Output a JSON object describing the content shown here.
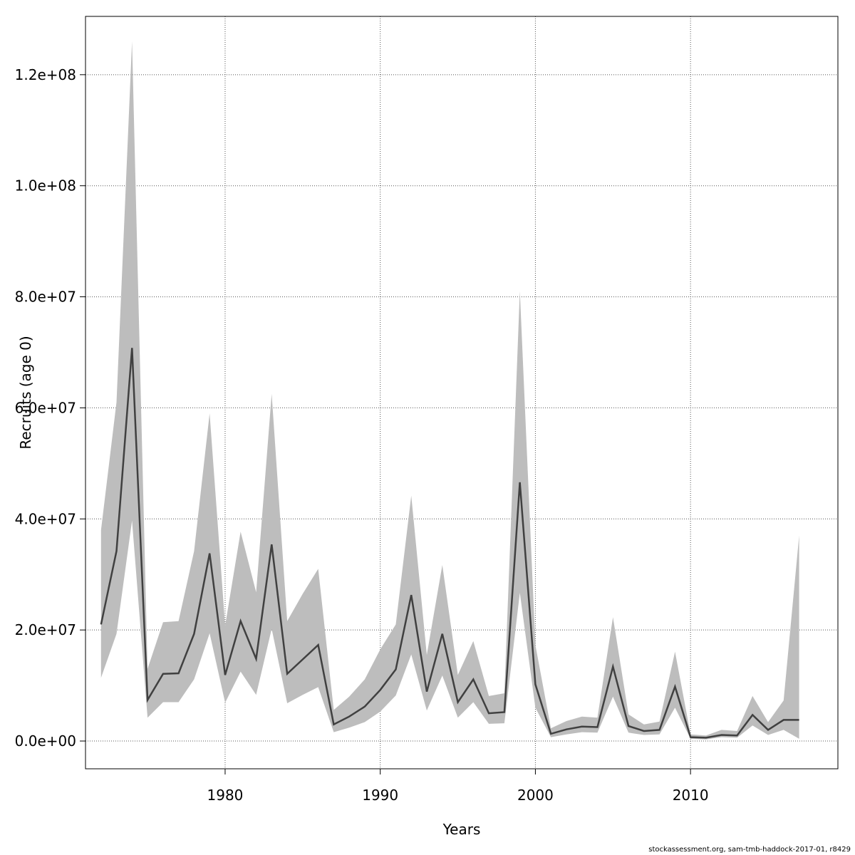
{
  "chart_data": {
    "type": "area",
    "xlabel": "Years",
    "ylabel": "Recruits (age 0)",
    "xlim": [
      1971,
      2019.5
    ],
    "ylim": [
      -5000000,
      130500000
    ],
    "x_ticks": [
      1980,
      1990,
      2000,
      2010
    ],
    "y_ticks": [
      0,
      20000000,
      40000000,
      60000000,
      80000000,
      100000000,
      120000000
    ],
    "y_tick_labels": [
      "0.0e+00",
      "2.0e+07",
      "4.0e+07",
      "6.0e+07",
      "8.0e+07",
      "1.0e+08",
      "1.2e+08"
    ],
    "grid": true,
    "colors": {
      "band": "#bdbdbd",
      "line": "#404040",
      "grid": "#555555"
    },
    "x": [
      1972,
      1973,
      1974,
      1975,
      1976,
      1977,
      1978,
      1979,
      1980,
      1981,
      1982,
      1983,
      1984,
      1985,
      1986,
      1987,
      1988,
      1989,
      1990,
      1991,
      1992,
      1993,
      1994,
      1995,
      1996,
      1997,
      1998,
      1999,
      2000,
      2001,
      2002,
      2003,
      2004,
      2005,
      2006,
      2007,
      2008,
      2009,
      2010,
      2011,
      2012,
      2013,
      2014,
      2015,
      2016,
      2017
    ],
    "series": [
      {
        "role": "estimate",
        "values": [
          21000000,
          34200000,
          70800000,
          7400000,
          12100000,
          12200000,
          19300000,
          33800000,
          11900000,
          21600000,
          14800000,
          35400000,
          12100000,
          14700000,
          17300000,
          3000000,
          4400000,
          6200000,
          9200000,
          12900000,
          26300000,
          8900000,
          19300000,
          7000000,
          11100000,
          5000000,
          5200000,
          46600000,
          10200000,
          1300000,
          2100000,
          2600000,
          2500000,
          13400000,
          2700000,
          1800000,
          2000000,
          9800000,
          700000,
          600000,
          1100000,
          1000000,
          4700000,
          2000000,
          3800000,
          3800000
        ]
      },
      {
        "role": "upper",
        "values": [
          38000000,
          61000000,
          126000000,
          13000000,
          21400000,
          21600000,
          34200000,
          59000000,
          20800000,
          37700000,
          26800000,
          62500000,
          21600000,
          26500000,
          31000000,
          5600000,
          8000000,
          11100000,
          16500000,
          21000000,
          44200000,
          15500000,
          31700000,
          11900000,
          18000000,
          8100000,
          8600000,
          81000000,
          17300000,
          2300000,
          3600000,
          4400000,
          4200000,
          22300000,
          4800000,
          3000000,
          3500000,
          16100000,
          1200000,
          1000000,
          2000000,
          1800000,
          8100000,
          3400000,
          7300000,
          37000000
        ]
      },
      {
        "role": "lower",
        "values": [
          11400000,
          19300000,
          39700000,
          4200000,
          7000000,
          7000000,
          11100000,
          19400000,
          6900000,
          12500000,
          8300000,
          20200000,
          6800000,
          8300000,
          9700000,
          1600000,
          2400000,
          3400000,
          5300000,
          8200000,
          15600000,
          5500000,
          11800000,
          4200000,
          7000000,
          3100000,
          3200000,
          26700000,
          6000000,
          700000,
          1200000,
          1600000,
          1500000,
          8000000,
          1500000,
          1100000,
          1200000,
          6000000,
          400000,
          300000,
          700000,
          600000,
          2800000,
          1100000,
          2000000,
          400000
        ]
      }
    ]
  },
  "footer": {
    "credit": "stockassessment.org, sam-tmb-haddock-2017-01, r8429"
  }
}
